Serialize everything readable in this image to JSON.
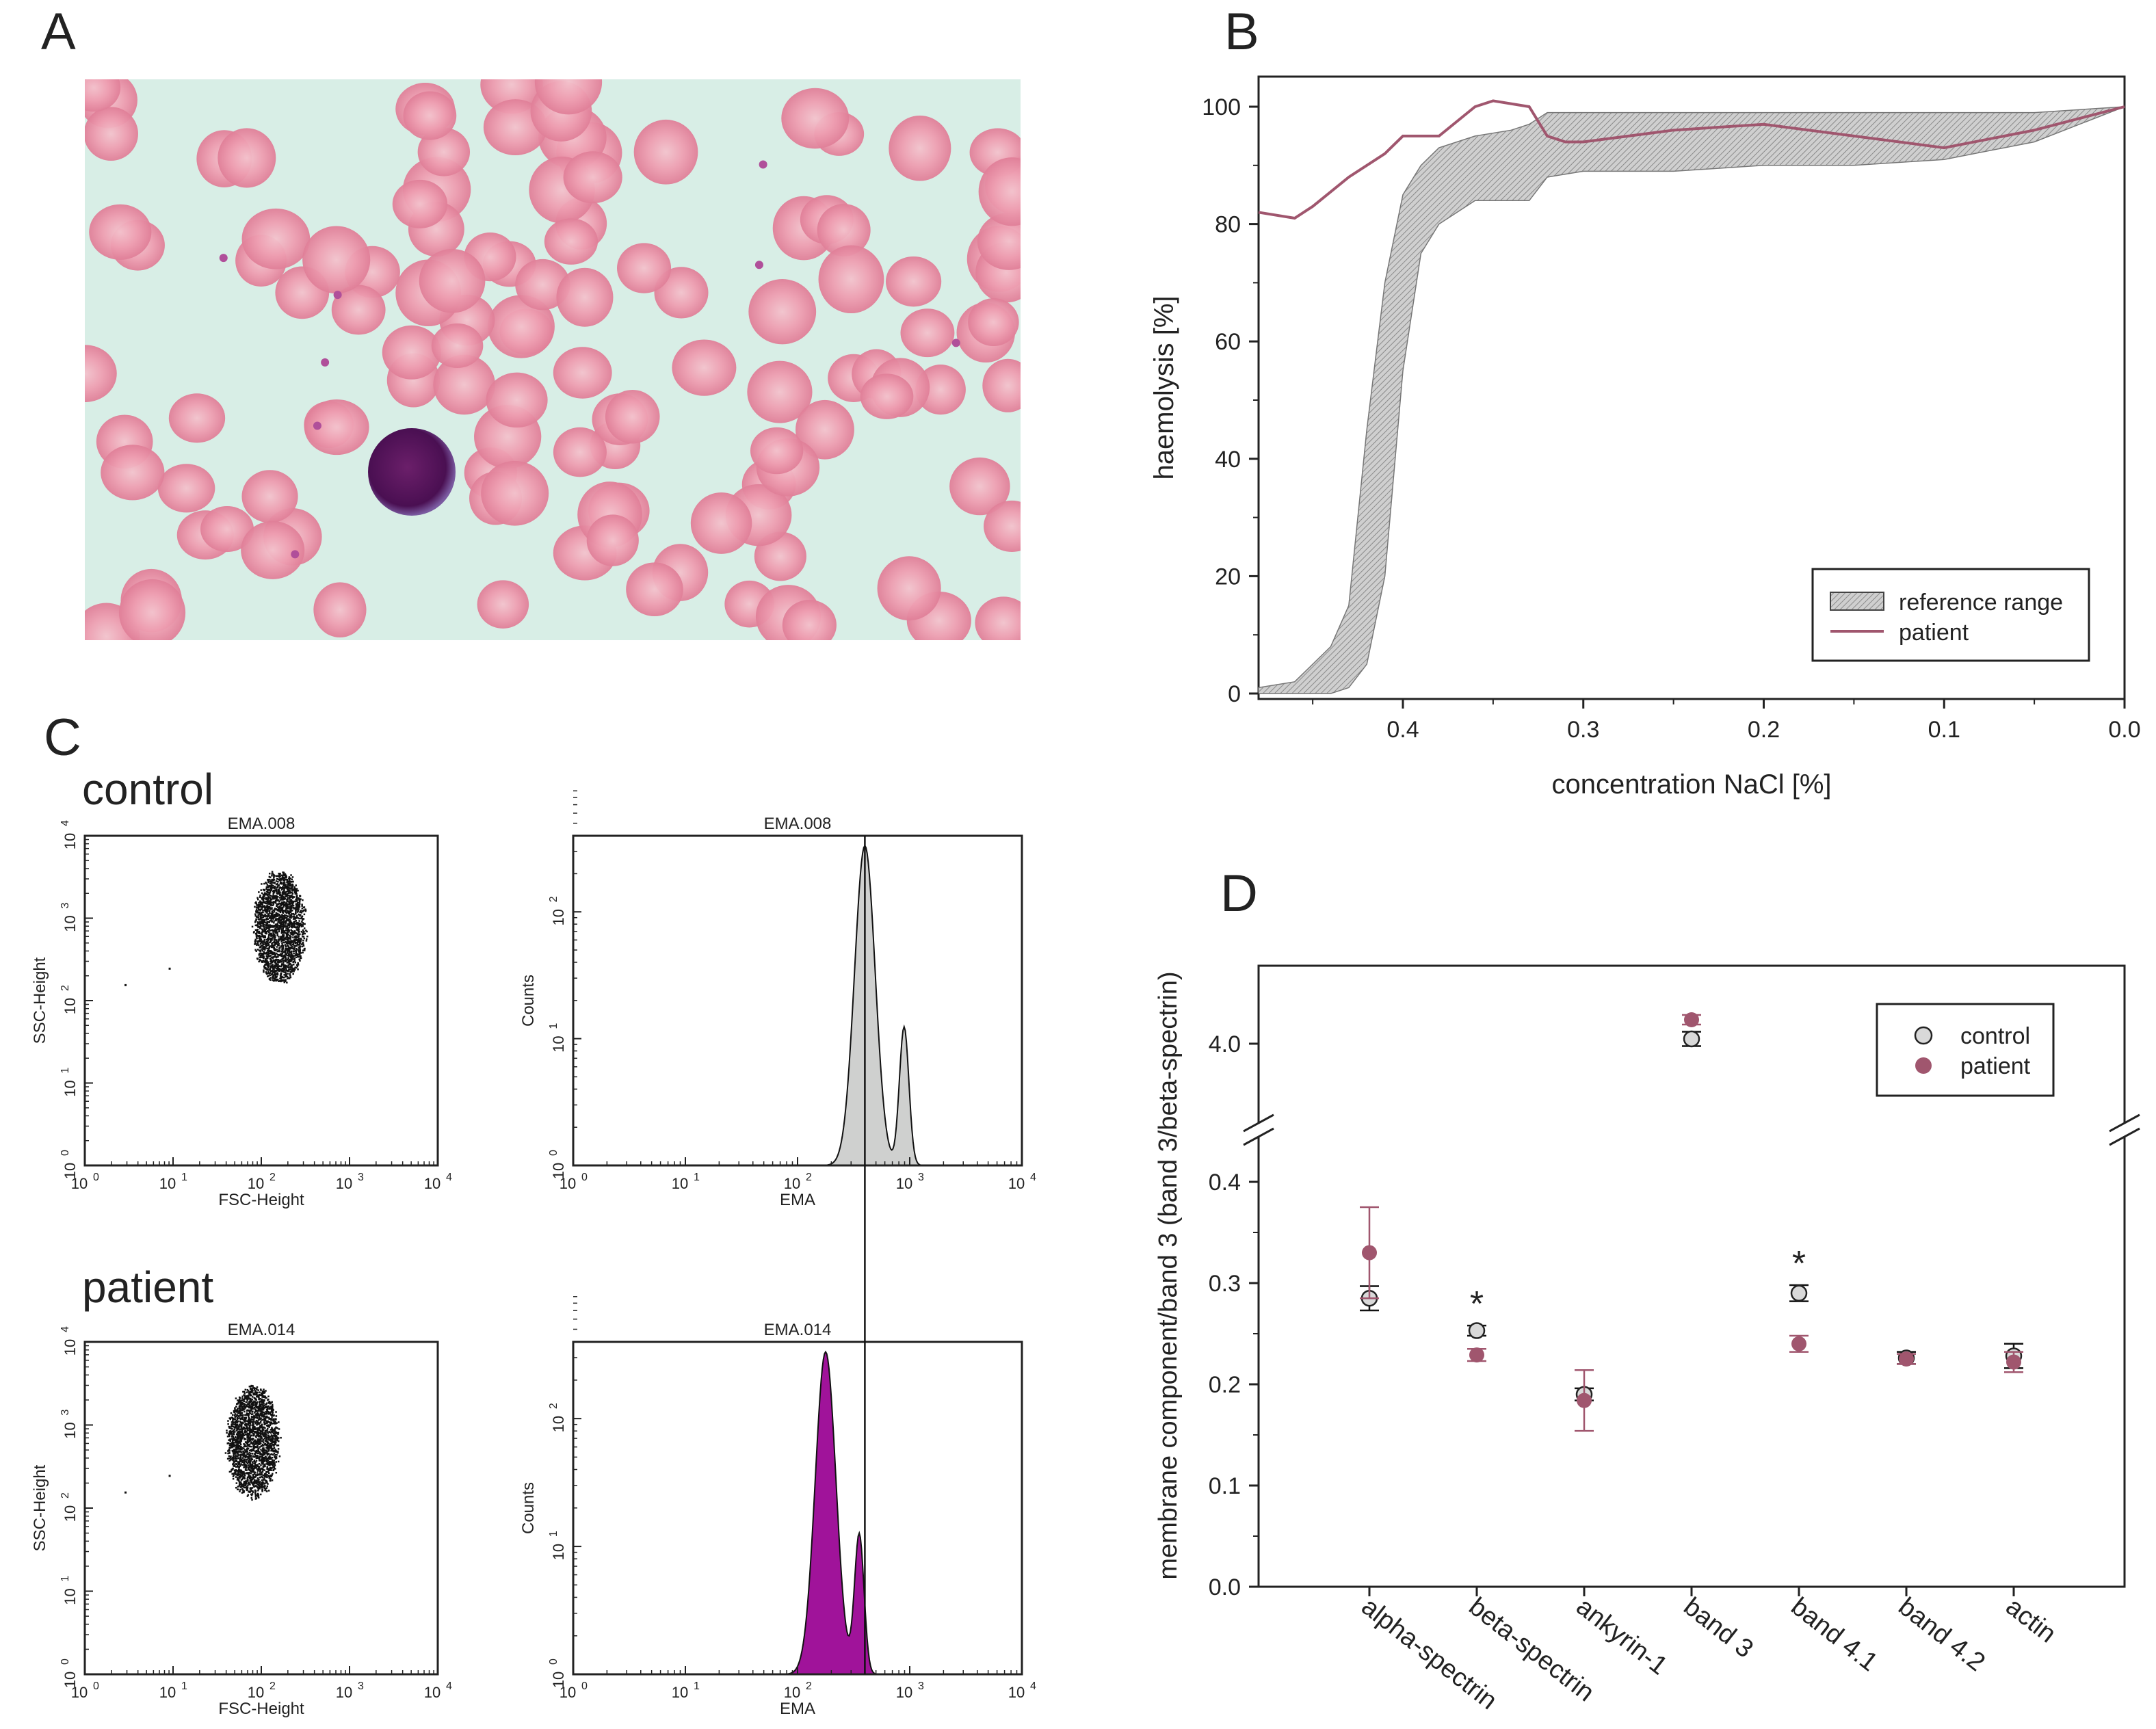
{
  "panels": {
    "a": {
      "letter": "A"
    },
    "b": {
      "letter": "B"
    },
    "c": {
      "letter": "C"
    },
    "d": {
      "letter": "D"
    }
  },
  "colors": {
    "patient": "#a0566e",
    "control_fill": "#d9d9d9",
    "reference_fill": "#c9c9c9",
    "control_hist": "#cfd0cf",
    "patient_hist": "#a0139a",
    "dots": "#111111"
  },
  "chart_data": [
    {
      "panel": "A",
      "type": "other",
      "description_image": "microscopy smear"
    },
    {
      "panel": "B",
      "type": "area",
      "xlabel": "concentration NaCl [%]",
      "ylabel": "haemolysis [%]",
      "xlim": [
        0.48,
        0.0
      ],
      "ylim": [
        0,
        100
      ],
      "x_ticks": [
        "0.4",
        "0.3",
        "0.2",
        "0.1",
        "0.0"
      ],
      "y_ticks": [
        "0",
        "20",
        "40",
        "60",
        "80",
        "100"
      ],
      "legend": {
        "position": "bottom-right",
        "items": [
          "reference range",
          "patient"
        ]
      },
      "reference_range": {
        "x": [
          0.48,
          0.46,
          0.44,
          0.43,
          0.42,
          0.41,
          0.4,
          0.39,
          0.38,
          0.36,
          0.34,
          0.33,
          0.32,
          0.3,
          0.25,
          0.2,
          0.15,
          0.1,
          0.05,
          0.0
        ],
        "upper": [
          1,
          2,
          8,
          15,
          45,
          70,
          85,
          90,
          93,
          95,
          96,
          97,
          99,
          99,
          99,
          99,
          99,
          99,
          99,
          100
        ],
        "lower": [
          0,
          0,
          0,
          1,
          5,
          20,
          55,
          75,
          80,
          84,
          84,
          84,
          88,
          89,
          89,
          90,
          90,
          91,
          94,
          100
        ]
      },
      "patient": {
        "x": [
          0.48,
          0.46,
          0.45,
          0.43,
          0.41,
          0.4,
          0.38,
          0.36,
          0.35,
          0.33,
          0.32,
          0.31,
          0.3,
          0.25,
          0.2,
          0.15,
          0.1,
          0.05,
          0.0
        ],
        "y": [
          82,
          81,
          83,
          88,
          92,
          95,
          95,
          100,
          101,
          100,
          95,
          94,
          94,
          96,
          97,
          95,
          93,
          96,
          100
        ]
      }
    },
    {
      "panel": "C",
      "type": "scatter",
      "row_labels": [
        "control",
        "patient"
      ],
      "plots": [
        {
          "row": "control",
          "kind": "dot-plot",
          "title": "EMA.008",
          "xlabel": "FSC-Height",
          "ylabel": "SSC-Height",
          "x_center_log": 2.2,
          "y_center_log": 2.9
        },
        {
          "row": "control",
          "kind": "histogram",
          "title": "EMA.008",
          "xlabel": "EMA",
          "ylabel": "Counts",
          "peak_log": 2.6,
          "shoulder_log": 2.95
        },
        {
          "row": "patient",
          "kind": "dot-plot",
          "title": "EMA.014",
          "xlabel": "FSC-Height",
          "ylabel": "SSC-Height",
          "x_center_log": 1.9,
          "y_center_log": 2.8
        },
        {
          "row": "patient",
          "kind": "histogram",
          "title": "EMA.014",
          "xlabel": "EMA",
          "ylabel": "Counts",
          "peak_log": 2.25,
          "shoulder_log": 2.55
        }
      ],
      "x_ticks": [
        "10",
        "10",
        "10",
        "10",
        "10"
      ],
      "x_tick_exps": [
        "0",
        "1",
        "2",
        "3",
        "4"
      ],
      "y_ticks_dot": [
        "10",
        "10",
        "10",
        "10",
        "10"
      ],
      "y_tick_exps_dot": [
        "0",
        "1",
        "2",
        "3",
        "4"
      ],
      "y_ticks_hist": [
        "10",
        "10",
        "10"
      ],
      "y_tick_exps_hist": [
        "0",
        "1",
        "2"
      ]
    },
    {
      "panel": "D",
      "type": "scatter",
      "ylabel": "membrane component/band 3 (band 3/beta-spectrin)",
      "categories": [
        "alpha-spectrin",
        "beta-spectrin",
        "ankyrin-1",
        "band 3",
        "band 4.1",
        "band 4.2",
        "actin"
      ],
      "ylim_lower": [
        0.0,
        0.4
      ],
      "upper_tick": "4.0",
      "y_ticks": [
        "0.0",
        "0.1",
        "0.2",
        "0.3",
        "0.4"
      ],
      "legend": {
        "position": "top-right",
        "items": [
          "control",
          "patient"
        ]
      },
      "series": [
        {
          "name": "control",
          "values": [
            0.285,
            0.253,
            0.19,
            4.1,
            0.29,
            0.226,
            0.228
          ],
          "errors": [
            0.012,
            0.005,
            0.006,
            0.15,
            0.008,
            0.006,
            0.012
          ]
        },
        {
          "name": "patient",
          "values": [
            0.33,
            0.229,
            0.184,
            4.5,
            0.24,
            0.225,
            0.222
          ],
          "errors": [
            0.045,
            0.006,
            0.03,
            0.1,
            0.008,
            0.005,
            0.01
          ]
        }
      ],
      "significance": [
        "",
        "*",
        "",
        "",
        "*",
        "",
        ""
      ]
    }
  ]
}
